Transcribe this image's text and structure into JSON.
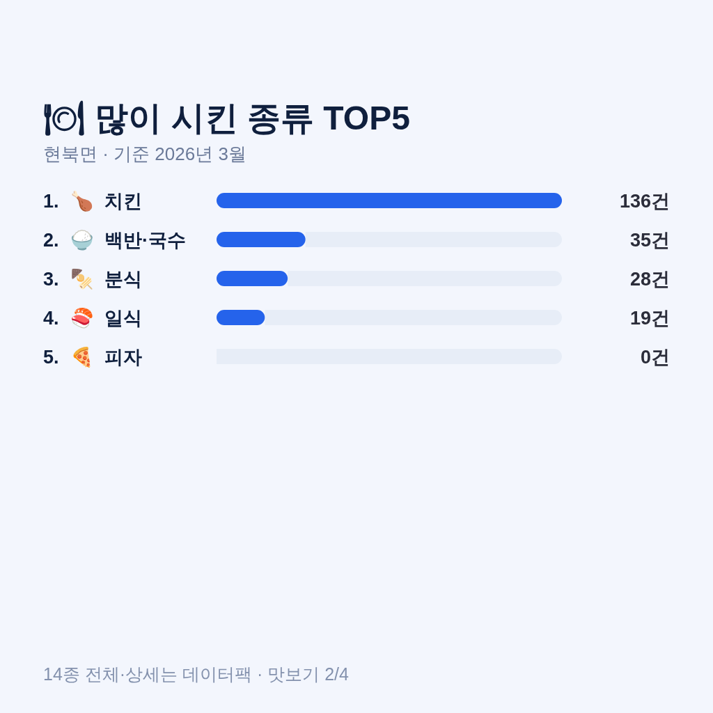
{
  "chart_data": {
    "type": "bar",
    "orientation": "horizontal",
    "stacked": true,
    "title": "🍽 많이 시킨 종류 TOP5",
    "subtitle": "현북면 · 기준 2026년 3월",
    "categories": [
      "1. 🍗 치킨",
      "2. 🍚 백반·국수",
      "3. 🍢 분식",
      "4. 🍣 일식",
      "5. 🍕 피자"
    ],
    "series": [
      {
        "color": "#2563eb",
        "values": [
          136,
          35,
          28,
          19,
          0
        ],
        "value_labels": [
          "136건",
          "35건",
          "28건",
          "19건",
          "0건"
        ]
      },
      {
        "color": "#e7edf7",
        "values": [
          0,
          101,
          108,
          117,
          136
        ]
      }
    ],
    "xlim": [
      0,
      136
    ],
    "annotations": [
      "14종 전체·상세는 데이터팩 · 맛보기 2/4"
    ]
  }
}
